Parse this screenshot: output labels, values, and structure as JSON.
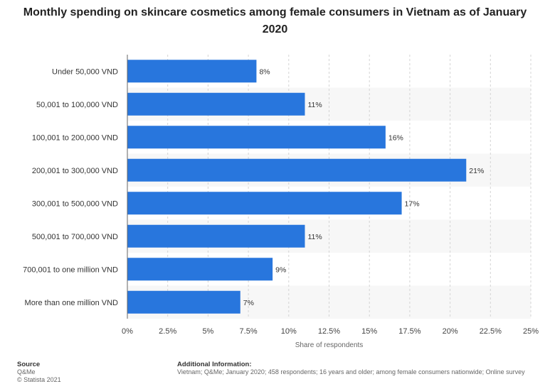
{
  "title": "Monthly spending on skincare cosmetics among female consumers in Vietnam as of January 2020",
  "chart_data": {
    "type": "bar",
    "orientation": "horizontal",
    "title": "Monthly spending on skincare cosmetics among female consumers in Vietnam as of January 2020",
    "categories": [
      "Under 50,000 VND",
      "50,001 to 100,000 VND",
      "100,001 to 200,000 VND",
      "200,001 to 300,000 VND",
      "300,001 to 500,000 VND",
      "500,001 to 700,000 VND",
      "700,001 to one million VND",
      "More than one million VND"
    ],
    "values": [
      8,
      11,
      16,
      21,
      17,
      11,
      9,
      7
    ],
    "value_labels": [
      "8%",
      "11%",
      "16%",
      "21%",
      "17%",
      "11%",
      "9%",
      "7%"
    ],
    "xlabel": "Share of respondents",
    "ylabel": "",
    "xlim": [
      0,
      25
    ],
    "ticks": [
      0,
      2.5,
      5,
      7.5,
      10,
      12.5,
      15,
      17.5,
      20,
      22.5,
      25
    ],
    "tick_labels": [
      "0%",
      "2.5%",
      "5%",
      "7.5%",
      "10%",
      "12.5%",
      "15%",
      "17.5%",
      "20%",
      "22.5%",
      "25%"
    ],
    "bar_color": "#2876dd",
    "grid": true
  },
  "footer": {
    "source_heading": "Source",
    "source_name": "Q&Me",
    "copyright": "© Statista 2021",
    "info_heading": "Additional Information:",
    "info_text": "Vietnam; Q&Me; January 2020; 458 respondents; 16 years and older; among female consumers nationwide; Online survey"
  }
}
